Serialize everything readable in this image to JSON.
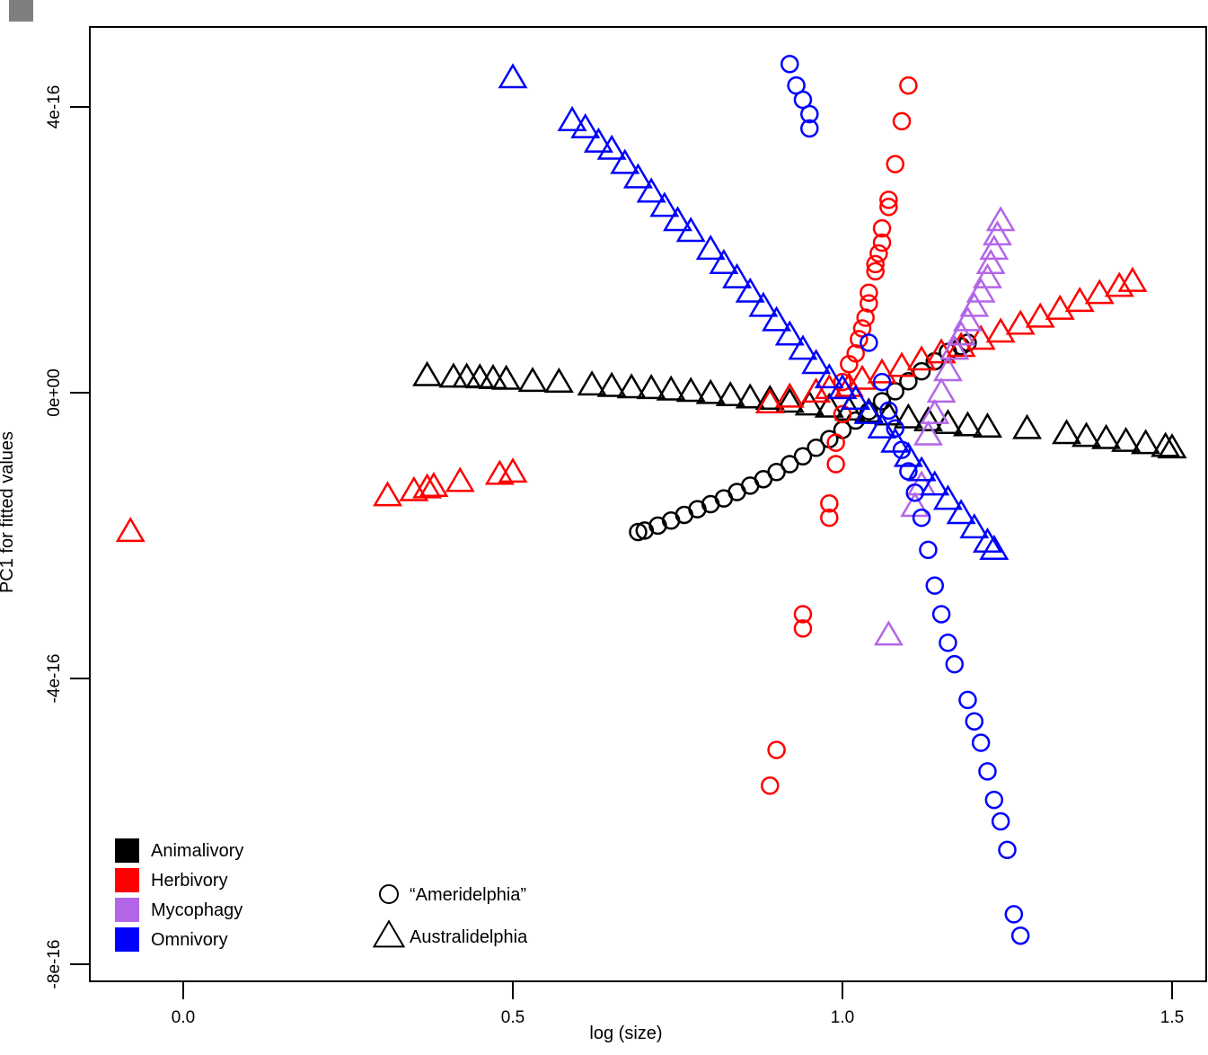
{
  "chart_data": {
    "type": "scatter",
    "title": "",
    "xlabel": "log (size)",
    "ylabel": "PC1 for fitted values",
    "xlim": [
      -0.14,
      1.53
    ],
    "ylim": [
      -8.2e-16,
      5.1e-16
    ],
    "x_ticks": [
      0.0,
      0.5,
      1.0,
      1.5
    ],
    "x_tick_labels": [
      "0.0",
      "0.5",
      "1.0",
      "1.5"
    ],
    "y_ticks": [
      4e-16,
      0,
      -4e-16,
      -8e-16
    ],
    "y_tick_labels": [
      "4e-16",
      "0e+00",
      "-4e-16",
      "-8e-16"
    ],
    "grid": false,
    "legend_diet": {
      "placement": "bottom-left",
      "items": [
        {
          "name": "Animalivory",
          "color": "#000000"
        },
        {
          "name": "Herbivory",
          "color": "#ff0000"
        },
        {
          "name": "Mycophagy",
          "color": "#b266e8"
        },
        {
          "name": "Omnivory",
          "color": "#0000ff"
        }
      ]
    },
    "legend_clade": {
      "placement": "bottom-center",
      "items": [
        {
          "name": "“Ameridelphia”",
          "shape": "circle"
        },
        {
          "name": "Australidelphia",
          "shape": "triangle"
        }
      ]
    },
    "series": [
      {
        "diet": "Animalivory",
        "clade": "Ameridelphia",
        "shape": "circle",
        "color": "#000000",
        "points": [
          [
            0.69,
            -1.95e-16
          ],
          [
            0.7,
            -1.93e-16
          ],
          [
            0.72,
            -1.86e-16
          ],
          [
            0.74,
            -1.79e-16
          ],
          [
            0.76,
            -1.71e-16
          ],
          [
            0.78,
            -1.63e-16
          ],
          [
            0.8,
            -1.56e-16
          ],
          [
            0.82,
            -1.48e-16
          ],
          [
            0.84,
            -1.39e-16
          ],
          [
            0.86,
            -1.3e-16
          ],
          [
            0.88,
            -1.21e-16
          ],
          [
            0.9,
            -1.11e-16
          ],
          [
            0.92,
            -1e-16
          ],
          [
            0.94,
            -8.9e-17
          ],
          [
            0.96,
            -7.7e-17
          ],
          [
            0.98,
            -6.5e-17
          ],
          [
            1.0,
            -5.2e-17
          ],
          [
            1.02,
            -3.9e-17
          ],
          [
            1.04,
            -2.6e-17
          ],
          [
            1.06,
            -1.2e-17
          ],
          [
            1.08,
            2e-18
          ],
          [
            1.1,
            1.6e-17
          ],
          [
            1.12,
            3e-17
          ],
          [
            1.14,
            4.4e-17
          ],
          [
            1.16,
            5.7e-17
          ],
          [
            1.18,
            6.5e-17
          ],
          [
            1.19,
            7e-17
          ]
        ]
      },
      {
        "diet": "Animalivory",
        "clade": "Australidelphia",
        "shape": "triangle",
        "color": "#000000",
        "points": [
          [
            0.37,
            2.3e-17
          ],
          [
            0.41,
            2.1e-17
          ],
          [
            0.43,
            2.1e-17
          ],
          [
            0.45,
            2e-17
          ],
          [
            0.47,
            1.9e-17
          ],
          [
            0.49,
            1.8e-17
          ],
          [
            0.53,
            1.5e-17
          ],
          [
            0.57,
            1.4e-17
          ],
          [
            0.62,
            1e-17
          ],
          [
            0.65,
            8e-18
          ],
          [
            0.68,
            6e-18
          ],
          [
            0.71,
            5e-18
          ],
          [
            0.74,
            3e-18
          ],
          [
            0.77,
            1e-18
          ],
          [
            0.8,
            -2e-18
          ],
          [
            0.83,
            -5e-18
          ],
          [
            0.86,
            -8e-18
          ],
          [
            0.89,
            -1e-17
          ],
          [
            0.92,
            -1.4e-17
          ],
          [
            0.95,
            -1.8e-17
          ],
          [
            0.98,
            -2.1e-17
          ],
          [
            1.01,
            -2.5e-17
          ],
          [
            1.04,
            -2.8e-17
          ],
          [
            1.07,
            -3.2e-17
          ],
          [
            1.1,
            -3.6e-17
          ],
          [
            1.13,
            -4e-17
          ],
          [
            1.16,
            -4.4e-17
          ],
          [
            1.19,
            -4.7e-17
          ],
          [
            1.22,
            -4.9e-17
          ],
          [
            1.28,
            -5.1e-17
          ],
          [
            1.34,
            -5.8e-17
          ],
          [
            1.37,
            -6.2e-17
          ],
          [
            1.4,
            -6.5e-17
          ],
          [
            1.43,
            -6.9e-17
          ],
          [
            1.46,
            -7.2e-17
          ],
          [
            1.49,
            -7.6e-17
          ],
          [
            1.5,
            -7.8e-17
          ]
        ]
      },
      {
        "diet": "Herbivory",
        "clade": "Ameridelphia",
        "shape": "circle",
        "color": "#ff0000",
        "points": [
          [
            1.1,
            4.3e-16
          ],
          [
            1.09,
            3.8e-16
          ],
          [
            1.08,
            3.2e-16
          ],
          [
            1.07,
            2.7e-16
          ],
          [
            1.07,
            2.6e-16
          ],
          [
            1.06,
            2.3e-16
          ],
          [
            1.06,
            2.1e-16
          ],
          [
            1.055,
            1.95e-16
          ],
          [
            1.05,
            1.8e-16
          ],
          [
            1.05,
            1.7e-16
          ],
          [
            1.04,
            1.4e-16
          ],
          [
            1.04,
            1.25e-16
          ],
          [
            1.035,
            1.05e-16
          ],
          [
            1.03,
            9e-17
          ],
          [
            1.025,
            7.5e-17
          ],
          [
            1.02,
            5.5e-17
          ],
          [
            1.01,
            4e-17
          ],
          [
            1.0,
            1.5e-17
          ],
          [
            1.0,
            -3e-17
          ],
          [
            0.99,
            -7e-17
          ],
          [
            0.99,
            -1e-16
          ],
          [
            0.98,
            -1.55e-16
          ],
          [
            0.98,
            -1.75e-16
          ],
          [
            0.94,
            -3.1e-16
          ],
          [
            0.94,
            -3.3e-16
          ],
          [
            0.9,
            -5e-16
          ],
          [
            0.89,
            -5.5e-16
          ]
        ]
      },
      {
        "diet": "Herbivory",
        "clade": "Australidelphia",
        "shape": "triangle",
        "color": "#ff0000",
        "points": [
          [
            -0.08,
            -1.95e-16
          ],
          [
            0.31,
            -1.45e-16
          ],
          [
            0.35,
            -1.38e-16
          ],
          [
            0.37,
            -1.34e-16
          ],
          [
            0.38,
            -1.32e-16
          ],
          [
            0.42,
            -1.25e-16
          ],
          [
            0.48,
            -1.15e-16
          ],
          [
            0.5,
            -1.12e-16
          ],
          [
            0.89,
            -1.5e-17
          ],
          [
            0.92,
            -7e-18
          ],
          [
            0.96,
            0.0
          ],
          [
            0.98,
            5e-18
          ],
          [
            1.01,
            8e-18
          ],
          [
            1.03,
            1.8e-17
          ],
          [
            1.06,
            2.7e-17
          ],
          [
            1.09,
            3.6e-17
          ],
          [
            1.12,
            4.5e-17
          ],
          [
            1.15,
            5.5e-17
          ],
          [
            1.18,
            6.4e-17
          ],
          [
            1.21,
            7.4e-17
          ],
          [
            1.24,
            8.4e-17
          ],
          [
            1.27,
            9.5e-17
          ],
          [
            1.3,
            1.05e-16
          ],
          [
            1.33,
            1.16e-16
          ],
          [
            1.36,
            1.27e-16
          ],
          [
            1.39,
            1.38e-16
          ],
          [
            1.42,
            1.48e-16
          ],
          [
            1.44,
            1.55e-16
          ]
        ]
      },
      {
        "diet": "Mycophagy",
        "clade": "Australidelphia",
        "shape": "triangle",
        "color": "#b266e8",
        "points": [
          [
            1.24,
            2.4e-16
          ],
          [
            1.235,
            2.2e-16
          ],
          [
            1.23,
            2e-16
          ],
          [
            1.225,
            1.8e-16
          ],
          [
            1.22,
            1.6e-16
          ],
          [
            1.21,
            1.4e-16
          ],
          [
            1.2,
            1.2e-16
          ],
          [
            1.19,
            1e-16
          ],
          [
            1.18,
            8e-17
          ],
          [
            1.17,
            6e-17
          ],
          [
            1.16,
            3e-17
          ],
          [
            1.15,
            0.0
          ],
          [
            1.14,
            -3e-17
          ],
          [
            1.13,
            -6e-17
          ],
          [
            1.12,
            -1.3e-16
          ],
          [
            1.11,
            -1.6e-16
          ],
          [
            1.07,
            -3.4e-16
          ]
        ]
      },
      {
        "diet": "Omnivory",
        "clade": "Ameridelphia",
        "shape": "circle",
        "color": "#0000ff",
        "points": [
          [
            0.92,
            4.6e-16
          ],
          [
            0.93,
            4.3e-16
          ],
          [
            0.94,
            4.1e-16
          ],
          [
            0.95,
            3.9e-16
          ],
          [
            0.95,
            3.7e-16
          ],
          [
            1.04,
            7e-17
          ],
          [
            1.06,
            1.5e-17
          ],
          [
            1.07,
            -2.5e-17
          ],
          [
            1.08,
            -5e-17
          ],
          [
            1.09,
            -8e-17
          ],
          [
            1.1,
            -1.1e-16
          ],
          [
            1.11,
            -1.4e-16
          ],
          [
            1.12,
            -1.75e-16
          ],
          [
            1.13,
            -2.2e-16
          ],
          [
            1.14,
            -2.7e-16
          ],
          [
            1.15,
            -3.1e-16
          ],
          [
            1.16,
            -3.5e-16
          ],
          [
            1.17,
            -3.8e-16
          ],
          [
            1.19,
            -4.3e-16
          ],
          [
            1.2,
            -4.6e-16
          ],
          [
            1.21,
            -4.9e-16
          ],
          [
            1.22,
            -5.3e-16
          ],
          [
            1.23,
            -5.7e-16
          ],
          [
            1.24,
            -6e-16
          ],
          [
            1.25,
            -6.4e-16
          ],
          [
            1.26,
            -7.3e-16
          ],
          [
            1.27,
            -7.6e-16
          ]
        ]
      },
      {
        "diet": "Omnivory",
        "clade": "Australidelphia",
        "shape": "triangle",
        "color": "#0000ff",
        "points": [
          [
            0.5,
            4.4e-16
          ],
          [
            0.59,
            3.8e-16
          ],
          [
            0.61,
            3.7e-16
          ],
          [
            0.63,
            3.5e-16
          ],
          [
            0.65,
            3.4e-16
          ],
          [
            0.67,
            3.2e-16
          ],
          [
            0.69,
            3e-16
          ],
          [
            0.71,
            2.8e-16
          ],
          [
            0.73,
            2.6e-16
          ],
          [
            0.75,
            2.4e-16
          ],
          [
            0.77,
            2.25e-16
          ],
          [
            0.8,
            2e-16
          ],
          [
            0.82,
            1.8e-16
          ],
          [
            0.84,
            1.6e-16
          ],
          [
            0.86,
            1.4e-16
          ],
          [
            0.88,
            1.2e-16
          ],
          [
            0.9,
            1e-16
          ],
          [
            0.92,
            8e-17
          ],
          [
            0.94,
            6e-17
          ],
          [
            0.96,
            4e-17
          ],
          [
            0.98,
            2e-17
          ],
          [
            1.0,
            5e-18
          ],
          [
            1.02,
            -1e-17
          ],
          [
            1.04,
            -3e-17
          ],
          [
            1.06,
            -5e-17
          ],
          [
            1.08,
            -7e-17
          ],
          [
            1.1,
            -9e-17
          ],
          [
            1.12,
            -1.1e-16
          ],
          [
            1.14,
            -1.3e-16
          ],
          [
            1.16,
            -1.5e-16
          ],
          [
            1.18,
            -1.7e-16
          ],
          [
            1.2,
            -1.9e-16
          ],
          [
            1.22,
            -2.1e-16
          ],
          [
            1.23,
            -2.2e-16
          ]
        ]
      }
    ]
  }
}
